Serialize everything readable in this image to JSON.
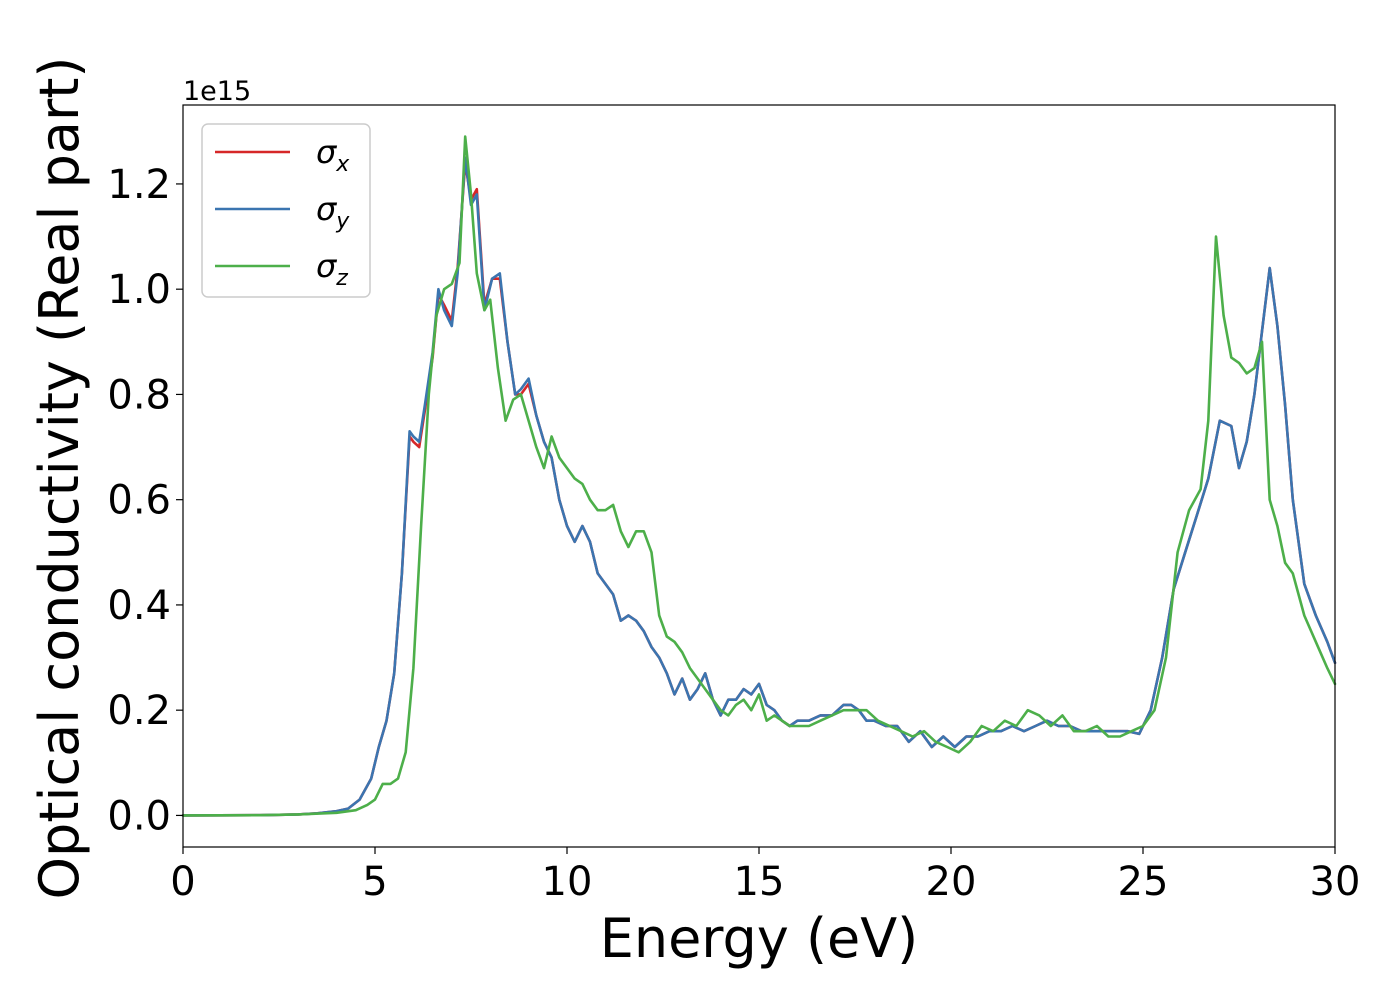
{
  "chart_data": {
    "type": "line",
    "title": "",
    "xlabel": "Energy (eV)",
    "ylabel": "Optical conductivity (Real part)",
    "y_offset_label": "1e15",
    "xlim": [
      0,
      30
    ],
    "ylim": [
      -0.06,
      1.35
    ],
    "xticks": [
      0,
      5,
      10,
      15,
      20,
      25,
      30
    ],
    "yticks": [
      0.0,
      0.2,
      0.4,
      0.6,
      0.8,
      1.0,
      1.2
    ],
    "xtick_labels": [
      "0",
      "5",
      "10",
      "15",
      "20",
      "25",
      "30"
    ],
    "ytick_labels": [
      "0.0",
      "0.2",
      "0.4",
      "0.6",
      "0.8",
      "1.0",
      "1.2"
    ],
    "grid": false,
    "legend_position": "top-left",
    "series": [
      {
        "name": "σx",
        "symbol": "σ",
        "subscript": "x",
        "color": "#d62728",
        "x": [
          0,
          2,
          3,
          3.5,
          4,
          4.3,
          4.6,
          4.9,
          5.1,
          5.3,
          5.5,
          5.7,
          5.9,
          6.0,
          6.15,
          6.3,
          6.5,
          6.65,
          6.8,
          7.0,
          7.15,
          7.35,
          7.5,
          7.65,
          7.85,
          8.05,
          8.25,
          8.45,
          8.65,
          8.8,
          9.0,
          9.2,
          9.4,
          9.6,
          9.8,
          10.0,
          10.2,
          10.4,
          10.6,
          10.8,
          11.0,
          11.2,
          11.4,
          11.6,
          11.8,
          12.0,
          12.2,
          12.4,
          12.6,
          12.8,
          13.0,
          13.2,
          13.4,
          13.6,
          13.8,
          14.0,
          14.2,
          14.4,
          14.6,
          14.8,
          15.0,
          15.2,
          15.4,
          15.6,
          15.8,
          16.0,
          16.3,
          16.6,
          16.9,
          17.2,
          17.4,
          17.6,
          17.8,
          18.0,
          18.3,
          18.6,
          18.9,
          19.2,
          19.5,
          19.8,
          20.1,
          20.4,
          20.7,
          21.0,
          21.3,
          21.6,
          21.9,
          22.2,
          22.5,
          22.8,
          23.1,
          23.4,
          23.7,
          24.0,
          24.3,
          24.6,
          24.9,
          25.2,
          25.5,
          25.8,
          26.1,
          26.4,
          26.7,
          27.0,
          27.3,
          27.5,
          27.7,
          27.9,
          28.1,
          28.3,
          28.5,
          28.7,
          28.9,
          29.2,
          29.5,
          29.8,
          30.0
        ],
        "y": [
          0,
          0.0005,
          0.002,
          0.004,
          0.008,
          0.013,
          0.03,
          0.07,
          0.13,
          0.18,
          0.27,
          0.46,
          0.72,
          0.71,
          0.7,
          0.77,
          0.87,
          0.99,
          0.97,
          0.94,
          1.04,
          1.24,
          1.17,
          1.19,
          0.97,
          1.02,
          1.02,
          0.9,
          0.8,
          0.8,
          0.82,
          0.76,
          0.71,
          0.68,
          0.6,
          0.55,
          0.52,
          0.55,
          0.52,
          0.46,
          0.44,
          0.42,
          0.37,
          0.38,
          0.37,
          0.35,
          0.32,
          0.3,
          0.27,
          0.23,
          0.26,
          0.22,
          0.24,
          0.27,
          0.22,
          0.19,
          0.22,
          0.22,
          0.24,
          0.23,
          0.25,
          0.21,
          0.2,
          0.18,
          0.17,
          0.18,
          0.18,
          0.19,
          0.19,
          0.21,
          0.21,
          0.2,
          0.18,
          0.18,
          0.17,
          0.17,
          0.14,
          0.16,
          0.13,
          0.15,
          0.13,
          0.15,
          0.15,
          0.16,
          0.16,
          0.17,
          0.16,
          0.17,
          0.18,
          0.17,
          0.17,
          0.16,
          0.16,
          0.16,
          0.16,
          0.16,
          0.155,
          0.2,
          0.3,
          0.43,
          0.5,
          0.57,
          0.64,
          0.75,
          0.74,
          0.66,
          0.71,
          0.8,
          0.92,
          1.04,
          0.93,
          0.78,
          0.6,
          0.44,
          0.38,
          0.33,
          0.29
        ]
      },
      {
        "name": "σy",
        "symbol": "σ",
        "subscript": "y",
        "color": "#3b75b0",
        "x": [
          0,
          2,
          3,
          3.5,
          4,
          4.3,
          4.6,
          4.9,
          5.1,
          5.3,
          5.5,
          5.7,
          5.9,
          6.0,
          6.15,
          6.3,
          6.5,
          6.65,
          6.8,
          7.0,
          7.15,
          7.35,
          7.5,
          7.65,
          7.85,
          8.05,
          8.25,
          8.45,
          8.65,
          8.8,
          9.0,
          9.2,
          9.4,
          9.6,
          9.8,
          10.0,
          10.2,
          10.4,
          10.6,
          10.8,
          11.0,
          11.2,
          11.4,
          11.6,
          11.8,
          12.0,
          12.2,
          12.4,
          12.6,
          12.8,
          13.0,
          13.2,
          13.4,
          13.6,
          13.8,
          14.0,
          14.2,
          14.4,
          14.6,
          14.8,
          15.0,
          15.2,
          15.4,
          15.6,
          15.8,
          16.0,
          16.3,
          16.6,
          16.9,
          17.2,
          17.4,
          17.6,
          17.8,
          18.0,
          18.3,
          18.6,
          18.9,
          19.2,
          19.5,
          19.8,
          20.1,
          20.4,
          20.7,
          21.0,
          21.3,
          21.6,
          21.9,
          22.2,
          22.5,
          22.8,
          23.1,
          23.4,
          23.7,
          24.0,
          24.3,
          24.6,
          24.9,
          25.2,
          25.5,
          25.8,
          26.1,
          26.4,
          26.7,
          27.0,
          27.3,
          27.5,
          27.7,
          27.9,
          28.1,
          28.3,
          28.5,
          28.7,
          28.9,
          29.2,
          29.5,
          29.8,
          30.0
        ],
        "y": [
          0,
          0.0005,
          0.002,
          0.004,
          0.008,
          0.013,
          0.03,
          0.07,
          0.13,
          0.18,
          0.27,
          0.46,
          0.73,
          0.72,
          0.71,
          0.78,
          0.88,
          1.0,
          0.96,
          0.93,
          1.03,
          1.25,
          1.16,
          1.18,
          0.96,
          1.02,
          1.03,
          0.9,
          0.8,
          0.81,
          0.83,
          0.76,
          0.71,
          0.68,
          0.6,
          0.55,
          0.52,
          0.55,
          0.52,
          0.46,
          0.44,
          0.42,
          0.37,
          0.38,
          0.37,
          0.35,
          0.32,
          0.3,
          0.27,
          0.23,
          0.26,
          0.22,
          0.24,
          0.27,
          0.22,
          0.19,
          0.22,
          0.22,
          0.24,
          0.23,
          0.25,
          0.21,
          0.2,
          0.18,
          0.17,
          0.18,
          0.18,
          0.19,
          0.19,
          0.21,
          0.21,
          0.2,
          0.18,
          0.18,
          0.17,
          0.17,
          0.14,
          0.16,
          0.13,
          0.15,
          0.13,
          0.15,
          0.15,
          0.16,
          0.16,
          0.17,
          0.16,
          0.17,
          0.18,
          0.17,
          0.17,
          0.16,
          0.16,
          0.16,
          0.16,
          0.16,
          0.155,
          0.2,
          0.3,
          0.43,
          0.5,
          0.57,
          0.64,
          0.75,
          0.74,
          0.66,
          0.71,
          0.8,
          0.92,
          1.04,
          0.93,
          0.78,
          0.6,
          0.44,
          0.38,
          0.33,
          0.29
        ]
      },
      {
        "name": "σz",
        "symbol": "σ",
        "subscript": "z",
        "color": "#4daf4a",
        "x": [
          0,
          2,
          3,
          4,
          4.5,
          4.8,
          5.0,
          5.2,
          5.4,
          5.6,
          5.8,
          6.0,
          6.2,
          6.4,
          6.6,
          6.8,
          7.0,
          7.2,
          7.35,
          7.5,
          7.65,
          7.85,
          8.0,
          8.2,
          8.4,
          8.6,
          8.8,
          9.0,
          9.2,
          9.4,
          9.6,
          9.8,
          10.0,
          10.2,
          10.4,
          10.6,
          10.8,
          11.0,
          11.2,
          11.4,
          11.6,
          11.8,
          12.0,
          12.2,
          12.4,
          12.6,
          12.8,
          13.0,
          13.2,
          13.4,
          13.6,
          13.8,
          14.0,
          14.2,
          14.4,
          14.6,
          14.8,
          15.0,
          15.2,
          15.4,
          15.6,
          15.8,
          16.0,
          16.3,
          16.6,
          16.9,
          17.2,
          17.5,
          17.8,
          18.1,
          18.4,
          18.7,
          19.0,
          19.3,
          19.6,
          19.9,
          20.2,
          20.5,
          20.8,
          21.1,
          21.4,
          21.7,
          22.0,
          22.3,
          22.6,
          22.9,
          23.2,
          23.5,
          23.8,
          24.1,
          24.4,
          24.7,
          25.0,
          25.3,
          25.6,
          25.9,
          26.2,
          26.5,
          26.7,
          26.9,
          27.1,
          27.3,
          27.5,
          27.7,
          27.9,
          28.1,
          28.3,
          28.5,
          28.7,
          28.9,
          29.2,
          29.5,
          29.8,
          30.0
        ],
        "y": [
          0,
          0.0005,
          0.002,
          0.005,
          0.01,
          0.02,
          0.03,
          0.06,
          0.06,
          0.07,
          0.12,
          0.28,
          0.55,
          0.8,
          0.95,
          1.0,
          1.01,
          1.05,
          1.29,
          1.18,
          1.03,
          0.96,
          0.98,
          0.85,
          0.75,
          0.79,
          0.8,
          0.75,
          0.7,
          0.66,
          0.72,
          0.68,
          0.66,
          0.64,
          0.63,
          0.6,
          0.58,
          0.58,
          0.59,
          0.54,
          0.51,
          0.54,
          0.54,
          0.5,
          0.38,
          0.34,
          0.33,
          0.31,
          0.28,
          0.26,
          0.24,
          0.22,
          0.2,
          0.19,
          0.21,
          0.22,
          0.2,
          0.23,
          0.18,
          0.19,
          0.18,
          0.17,
          0.17,
          0.17,
          0.18,
          0.19,
          0.2,
          0.2,
          0.2,
          0.18,
          0.17,
          0.16,
          0.15,
          0.16,
          0.14,
          0.13,
          0.12,
          0.14,
          0.17,
          0.16,
          0.18,
          0.17,
          0.2,
          0.19,
          0.17,
          0.19,
          0.16,
          0.16,
          0.17,
          0.15,
          0.15,
          0.16,
          0.17,
          0.2,
          0.3,
          0.5,
          0.58,
          0.62,
          0.75,
          1.1,
          0.95,
          0.87,
          0.86,
          0.84,
          0.85,
          0.9,
          0.6,
          0.55,
          0.48,
          0.46,
          0.38,
          0.33,
          0.28,
          0.25
        ]
      }
    ]
  }
}
